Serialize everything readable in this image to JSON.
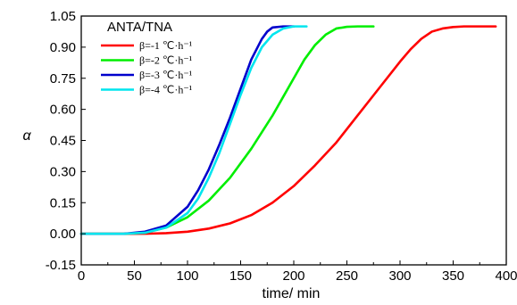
{
  "chart_data": {
    "type": "line",
    "title": "",
    "xlabel": "time/ min",
    "ylabel": "α",
    "xlim": [
      0,
      400
    ],
    "ylim": [
      -0.15,
      1.05
    ],
    "xticks": [
      0,
      50,
      100,
      150,
      200,
      250,
      300,
      350,
      400
    ],
    "xtick_labels": [
      "0",
      "50",
      "100",
      "150",
      "200",
      "250",
      "300",
      "350",
      "400"
    ],
    "yticks": [
      -0.15,
      0.0,
      0.15,
      0.3,
      0.45,
      0.6,
      0.75,
      0.9,
      1.05
    ],
    "ytick_labels": [
      "-0.15",
      "0.00",
      "0.15",
      "0.30",
      "0.45",
      "0.60",
      "0.75",
      "0.90",
      "1.05"
    ],
    "grid": false,
    "legend": {
      "title": "ANTA/TNA",
      "placement": "top-left",
      "entries": [
        "β=-1 ℃·h⁻¹",
        "β=-2 ℃·h⁻¹",
        "β=-3 ℃·h⁻¹",
        "β=-4 ℃·h⁻¹"
      ]
    },
    "series": [
      {
        "name": "β=-1 ℃·h⁻¹",
        "color": "#ff0000",
        "x": [
          0,
          40,
          60,
          80,
          100,
          120,
          140,
          160,
          180,
          200,
          220,
          240,
          260,
          280,
          300,
          310,
          320,
          330,
          340,
          350,
          360,
          370,
          390
        ],
        "y": [
          0,
          0,
          0,
          0.003,
          0.01,
          0.025,
          0.05,
          0.09,
          0.15,
          0.23,
          0.33,
          0.44,
          0.57,
          0.7,
          0.83,
          0.89,
          0.94,
          0.975,
          0.99,
          0.997,
          1.0,
          1.0,
          1.0
        ]
      },
      {
        "name": "β=-2 ℃·h⁻¹",
        "color": "#00ee00",
        "x": [
          0,
          40,
          60,
          80,
          100,
          120,
          140,
          160,
          180,
          190,
          200,
          210,
          220,
          230,
          240,
          250,
          260,
          275
        ],
        "y": [
          0,
          0,
          0.005,
          0.03,
          0.08,
          0.16,
          0.27,
          0.41,
          0.57,
          0.66,
          0.75,
          0.84,
          0.91,
          0.96,
          0.99,
          0.998,
          1.0,
          1.0
        ]
      },
      {
        "name": "β=-3 ℃·h⁻¹",
        "color": "#0000cc",
        "x": [
          0,
          40,
          60,
          80,
          100,
          110,
          120,
          130,
          140,
          150,
          160,
          170,
          175,
          180,
          190,
          200
        ],
        "y": [
          0,
          0,
          0.01,
          0.04,
          0.13,
          0.21,
          0.31,
          0.43,
          0.56,
          0.7,
          0.84,
          0.94,
          0.975,
          0.995,
          1.0,
          1.0
        ]
      },
      {
        "name": "β=-4 ℃·h⁻¹",
        "color": "#00e5ee",
        "x": [
          0,
          40,
          60,
          80,
          100,
          110,
          120,
          130,
          140,
          150,
          160,
          170,
          180,
          190,
          200,
          212
        ],
        "y": [
          0,
          0,
          0.005,
          0.03,
          0.1,
          0.17,
          0.27,
          0.39,
          0.53,
          0.67,
          0.8,
          0.9,
          0.96,
          0.99,
          1.0,
          1.0
        ]
      }
    ]
  }
}
